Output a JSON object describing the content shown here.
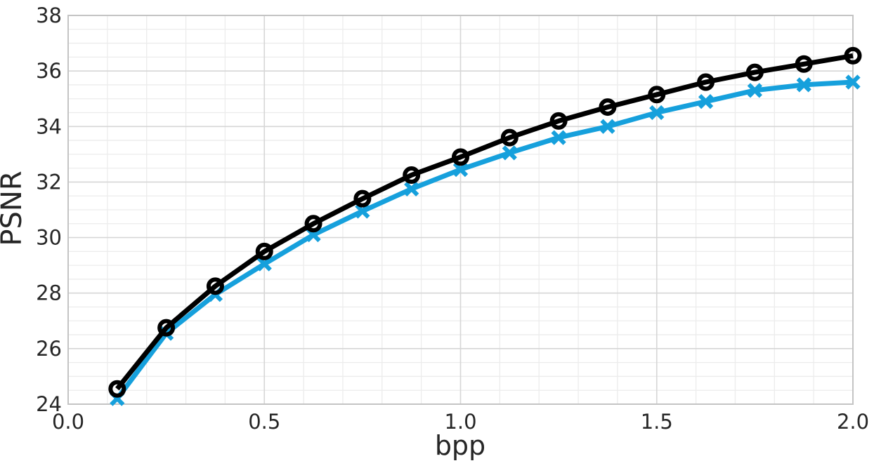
{
  "chart_data": {
    "type": "line",
    "title": "",
    "xlabel": "bpp",
    "ylabel": "PSNR",
    "xlim": [
      0.0,
      2.0
    ],
    "ylim": [
      24,
      38
    ],
    "grid": {
      "visible": true,
      "x_minor_step": 0.1,
      "x_major_step": 0.5,
      "y_minor_step": 0.5,
      "y_major_step": 2,
      "minor_color": "#ececec",
      "major_color": "#d6d6d6",
      "spine_color": "#c4c4c4"
    },
    "legend": "none",
    "xticks": {
      "values": [
        0.0,
        0.5,
        1.0,
        1.5,
        2.0
      ],
      "labels": [
        "0.0",
        "0.5",
        "1.0",
        "1.5",
        "2.0"
      ]
    },
    "yticks": {
      "values": [
        24,
        26,
        28,
        30,
        32,
        34,
        36,
        38
      ],
      "labels": [
        "24",
        "26",
        "28",
        "30",
        "32",
        "34",
        "36",
        "38"
      ]
    },
    "x": [
      0.125,
      0.25,
      0.375,
      0.5,
      0.625,
      0.75,
      0.875,
      1.0,
      1.125,
      1.25,
      1.375,
      1.5,
      1.625,
      1.75,
      1.875,
      2.0
    ],
    "series": [
      {
        "id": "black-circle-series",
        "marker": "circle",
        "color": "#000000",
        "values": [
          24.55,
          26.75,
          28.25,
          29.5,
          30.5,
          31.4,
          32.25,
          32.9,
          33.6,
          34.2,
          34.7,
          35.15,
          35.6,
          35.95,
          36.25,
          36.55
        ]
      },
      {
        "id": "blue-x-series",
        "marker": "x",
        "color": "#16A0DC",
        "values": [
          24.2,
          26.55,
          27.95,
          29.05,
          30.1,
          30.95,
          31.75,
          32.45,
          33.05,
          33.6,
          34.0,
          34.5,
          34.9,
          35.3,
          35.5,
          35.6
        ]
      }
    ],
    "text_color": "#262626"
  }
}
